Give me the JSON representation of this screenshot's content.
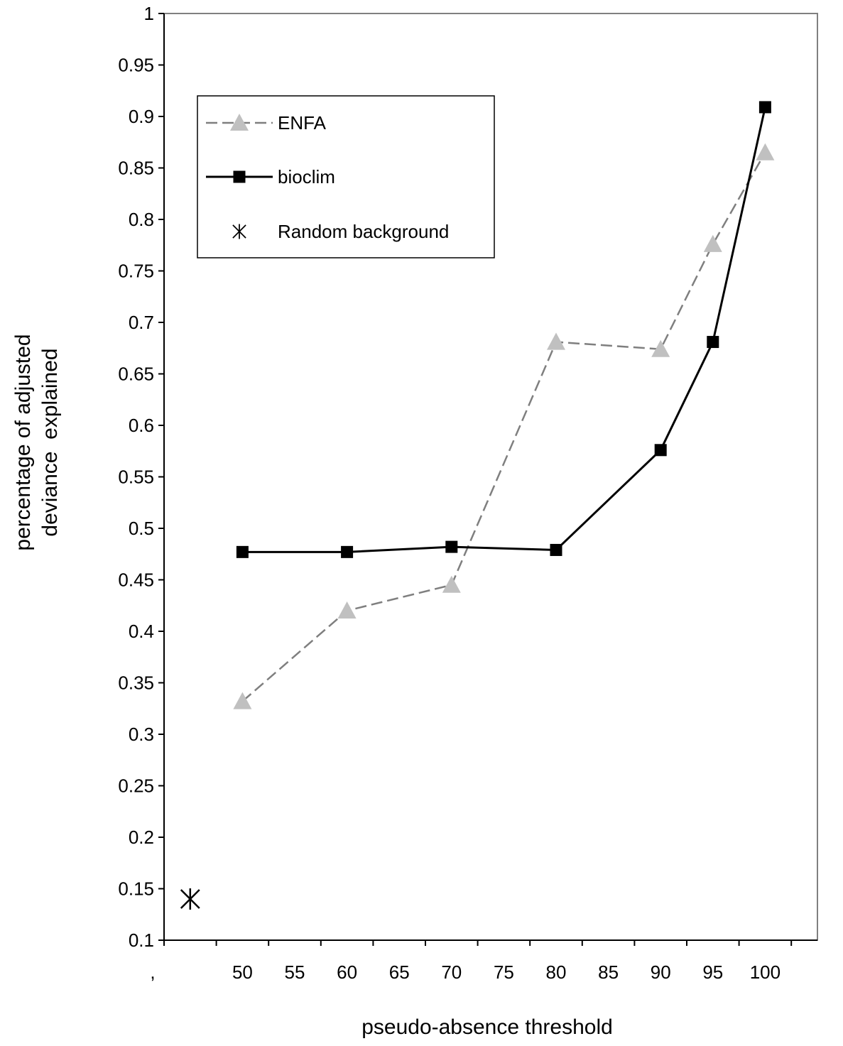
{
  "chart_data": {
    "type": "line",
    "title": "",
    "xlabel": "pseudo-absence threshold",
    "ylabel": [
      "percentage of adjusted",
      "deviance  explained"
    ],
    "ylim": [
      0.1,
      1
    ],
    "yticks": [
      "0.1",
      "0.15",
      "0.2",
      "0.25",
      "0.3",
      "0.35",
      "0.4",
      "0.45",
      "0.5",
      "0.55",
      "0.6",
      "0.65",
      "0.7",
      "0.75",
      "0.8",
      "0.85",
      "0.9",
      "0.95",
      "1"
    ],
    "xticks": [
      "50",
      "55",
      "60",
      "65",
      "70",
      "75",
      "80",
      "85",
      "90",
      "95",
      "100"
    ],
    "x_first_label": ",",
    "grid": false,
    "legend_position": "top-left",
    "series": [
      {
        "name": "ENFA",
        "style": "dashed",
        "color": "#7f7f7f",
        "marker": "triangle",
        "marker_color": "#c0c0c0",
        "x": [
          "50",
          "60",
          "70",
          "80",
          "90",
          "95",
          "100"
        ],
        "values": [
          0.332,
          0.42,
          0.445,
          0.681,
          0.674,
          0.776,
          0.865
        ]
      },
      {
        "name": "bioclim",
        "style": "solid",
        "color": "#000000",
        "marker": "square",
        "marker_color": "#000000",
        "x": [
          "50",
          "60",
          "70",
          "80",
          "90",
          "95",
          "100"
        ],
        "values": [
          0.477,
          0.477,
          0.482,
          0.479,
          0.576,
          0.681,
          0.909
        ]
      },
      {
        "name": "Random background",
        "style": "none",
        "color": "#000000",
        "marker": "asterisk",
        "x": [
          ","
        ],
        "values": [
          0.14
        ]
      }
    ]
  }
}
